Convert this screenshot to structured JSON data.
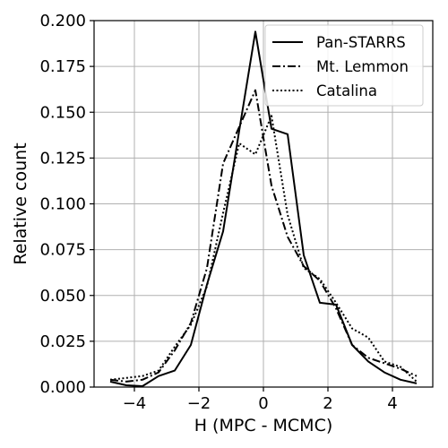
{
  "chart_data": {
    "type": "line",
    "title": "",
    "xlabel": "H (MPC - MCMC)",
    "ylabel": "Relative count",
    "xlim": [
      -5.25,
      5.25
    ],
    "ylim": [
      0,
      0.2
    ],
    "xticks": [
      -4,
      -2,
      0,
      2,
      4
    ],
    "xtick_labels": [
      "−4",
      "−2",
      "0",
      "2",
      "4"
    ],
    "yticks": [
      0,
      0.025,
      0.05,
      0.075,
      0.1,
      0.125,
      0.15,
      0.175,
      0.2
    ],
    "ytick_labels": [
      "0.000",
      "0.025",
      "0.050",
      "0.075",
      "0.100",
      "0.125",
      "0.150",
      "0.175",
      "0.200"
    ],
    "grid": true,
    "legend_position": "top-right",
    "series": [
      {
        "name": "Pan-STARRS",
        "style": "solid",
        "color": "#000000",
        "x": [
          -4.75,
          -4.25,
          -3.75,
          -3.25,
          -2.75,
          -2.25,
          -1.75,
          -1.25,
          -0.75,
          -0.25,
          0.25,
          0.75,
          1.25,
          1.75,
          2.25,
          2.75,
          3.25,
          3.75,
          4.25,
          4.75
        ],
        "y": [
          0.003,
          0.001,
          0.0005,
          0.006,
          0.009,
          0.023,
          0.056,
          0.085,
          0.14,
          0.194,
          0.141,
          0.138,
          0.072,
          0.046,
          0.045,
          0.023,
          0.014,
          0.008,
          0.004,
          0.002
        ]
      },
      {
        "name": "Mt. Lemmon",
        "style": "dashdot",
        "color": "#000000",
        "x": [
          -4.75,
          -4.25,
          -3.75,
          -3.25,
          -2.75,
          -2.25,
          -1.75,
          -1.25,
          -0.75,
          -0.25,
          0.25,
          0.75,
          1.25,
          1.75,
          2.25,
          2.75,
          3.25,
          3.75,
          4.25,
          4.75
        ],
        "y": [
          0.004,
          0.003,
          0.004,
          0.008,
          0.02,
          0.035,
          0.065,
          0.122,
          0.142,
          0.162,
          0.11,
          0.082,
          0.066,
          0.058,
          0.043,
          0.023,
          0.016,
          0.013,
          0.01,
          0.006
        ]
      },
      {
        "name": "Catalina",
        "style": "dotted",
        "color": "#000000",
        "x": [
          -4.75,
          -4.25,
          -3.75,
          -3.25,
          -2.75,
          -2.25,
          -1.75,
          -1.25,
          -0.75,
          -0.25,
          0.25,
          0.75,
          1.25,
          1.75,
          2.25,
          2.75,
          3.25,
          3.75,
          4.25,
          4.75
        ],
        "y": [
          0.004,
          0.005,
          0.006,
          0.009,
          0.022,
          0.034,
          0.055,
          0.095,
          0.133,
          0.127,
          0.148,
          0.094,
          0.065,
          0.059,
          0.046,
          0.032,
          0.027,
          0.014,
          0.011,
          0.003
        ]
      }
    ]
  }
}
